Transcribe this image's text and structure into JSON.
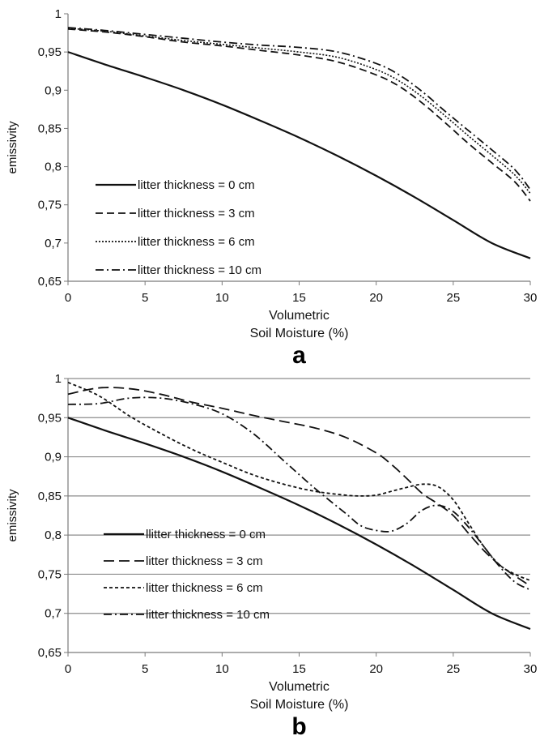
{
  "chart_data": [
    {
      "type": "line",
      "panel_label": "a",
      "xlabel": [
        "Volumetric",
        "Soil Moisture (%)"
      ],
      "ylabel": "emissivity",
      "xlim": [
        0,
        30
      ],
      "ylim": [
        0.65,
        1
      ],
      "x_ticks": [
        "0",
        "5",
        "10",
        "15",
        "20",
        "25",
        "30"
      ],
      "y_ticks": [
        "0,65",
        "0,7",
        "0,75",
        "0,8",
        "0,85",
        "0,9",
        "0,95",
        "1"
      ],
      "grid": false,
      "legend_position": "lower-left",
      "series": [
        {
          "name": "litter thickness = 0 cm",
          "dash": "solid",
          "x": [
            0,
            2.5,
            5,
            7.5,
            10,
            12.5,
            15,
            17.5,
            20,
            22.5,
            25,
            27.5,
            30
          ],
          "y": [
            0.95,
            0.933,
            0.917,
            0.9,
            0.881,
            0.86,
            0.838,
            0.814,
            0.788,
            0.76,
            0.73,
            0.7,
            0.68
          ]
        },
        {
          "name": "litter thickness = 3 cm",
          "dash": "dashed",
          "x": [
            0,
            2.5,
            5,
            7.5,
            10,
            12.5,
            15,
            17.5,
            20,
            21.5,
            23,
            24.5,
            26,
            27.5,
            29,
            30
          ],
          "y": [
            0.98,
            0.976,
            0.97,
            0.963,
            0.958,
            0.952,
            0.946,
            0.937,
            0.92,
            0.905,
            0.883,
            0.857,
            0.83,
            0.805,
            0.78,
            0.755
          ]
        },
        {
          "name": "litter thickness = 6 cm",
          "dash": "dotted",
          "x": [
            0,
            2.5,
            5,
            7.5,
            10,
            12.5,
            15,
            17.5,
            20,
            21.5,
            23,
            24.5,
            26,
            27.5,
            29,
            30
          ],
          "y": [
            0.981,
            0.977,
            0.971,
            0.965,
            0.96,
            0.955,
            0.95,
            0.943,
            0.927,
            0.912,
            0.891,
            0.866,
            0.84,
            0.815,
            0.789,
            0.765
          ]
        },
        {
          "name": "litter thickness = 10 cm",
          "dash": "dash-dot",
          "x": [
            0,
            2.5,
            5,
            7.5,
            10,
            12.5,
            15,
            17.5,
            20,
            21.5,
            23,
            24.5,
            26,
            27.5,
            29,
            30
          ],
          "y": [
            0.982,
            0.978,
            0.973,
            0.968,
            0.963,
            0.959,
            0.956,
            0.95,
            0.935,
            0.92,
            0.898,
            0.872,
            0.847,
            0.822,
            0.796,
            0.77
          ]
        }
      ]
    },
    {
      "type": "line",
      "panel_label": "b",
      "xlabel": [
        "Volumetric",
        "Soil Moisture (%)"
      ],
      "ylabel": "emissivity",
      "xlim": [
        0,
        30
      ],
      "ylim": [
        0.65,
        1
      ],
      "x_ticks": [
        "0",
        "5",
        "10",
        "15",
        "20",
        "25",
        "30"
      ],
      "y_ticks": [
        "0,65",
        "0,7",
        "0,75",
        "0,8",
        "0,85",
        "0,9",
        "0,95",
        "1"
      ],
      "grid": true,
      "legend_position": "lower-left",
      "series": [
        {
          "name": "llitter thickness = 0 cm",
          "dash": "solid",
          "x": [
            0,
            2.5,
            5,
            7.5,
            10,
            12.5,
            15,
            17.5,
            20,
            22.5,
            25,
            27.5,
            30
          ],
          "y": [
            0.95,
            0.933,
            0.917,
            0.9,
            0.881,
            0.86,
            0.838,
            0.814,
            0.788,
            0.76,
            0.73,
            0.7,
            0.68
          ]
        },
        {
          "name": "litter thickness = 3 cm",
          "dash": "long-dash",
          "x": [
            0,
            2,
            4,
            6,
            8,
            10,
            12,
            14,
            16,
            18,
            20,
            21,
            22,
            23,
            24,
            25,
            26,
            27,
            28,
            29,
            30
          ],
          "y": [
            0.98,
            0.988,
            0.987,
            0.98,
            0.97,
            0.962,
            0.953,
            0.945,
            0.937,
            0.925,
            0.905,
            0.89,
            0.872,
            0.853,
            0.84,
            0.825,
            0.802,
            0.78,
            0.762,
            0.748,
            0.735
          ]
        },
        {
          "name": "litter thickness = 6 cm",
          "dash": "short-dash",
          "x": [
            0,
            2,
            4,
            6,
            8,
            10,
            12,
            14,
            16,
            18,
            19,
            20,
            21,
            22,
            23,
            24,
            25,
            26,
            27,
            28,
            29,
            30
          ],
          "y": [
            0.995,
            0.978,
            0.952,
            0.93,
            0.91,
            0.893,
            0.877,
            0.865,
            0.856,
            0.851,
            0.85,
            0.851,
            0.856,
            0.861,
            0.865,
            0.862,
            0.845,
            0.815,
            0.785,
            0.762,
            0.75,
            0.742
          ]
        },
        {
          "name": "litter thickness = 10 cm",
          "dash": "dash-dot",
          "x": [
            0,
            2,
            4,
            6,
            8,
            10,
            12,
            14,
            16,
            18,
            19,
            20,
            21,
            22,
            23,
            24,
            25,
            26,
            27,
            28,
            29,
            30
          ],
          "y": [
            0.967,
            0.968,
            0.975,
            0.975,
            0.968,
            0.955,
            0.93,
            0.895,
            0.86,
            0.828,
            0.812,
            0.806,
            0.805,
            0.815,
            0.832,
            0.838,
            0.83,
            0.81,
            0.785,
            0.76,
            0.74,
            0.73
          ]
        }
      ]
    }
  ]
}
